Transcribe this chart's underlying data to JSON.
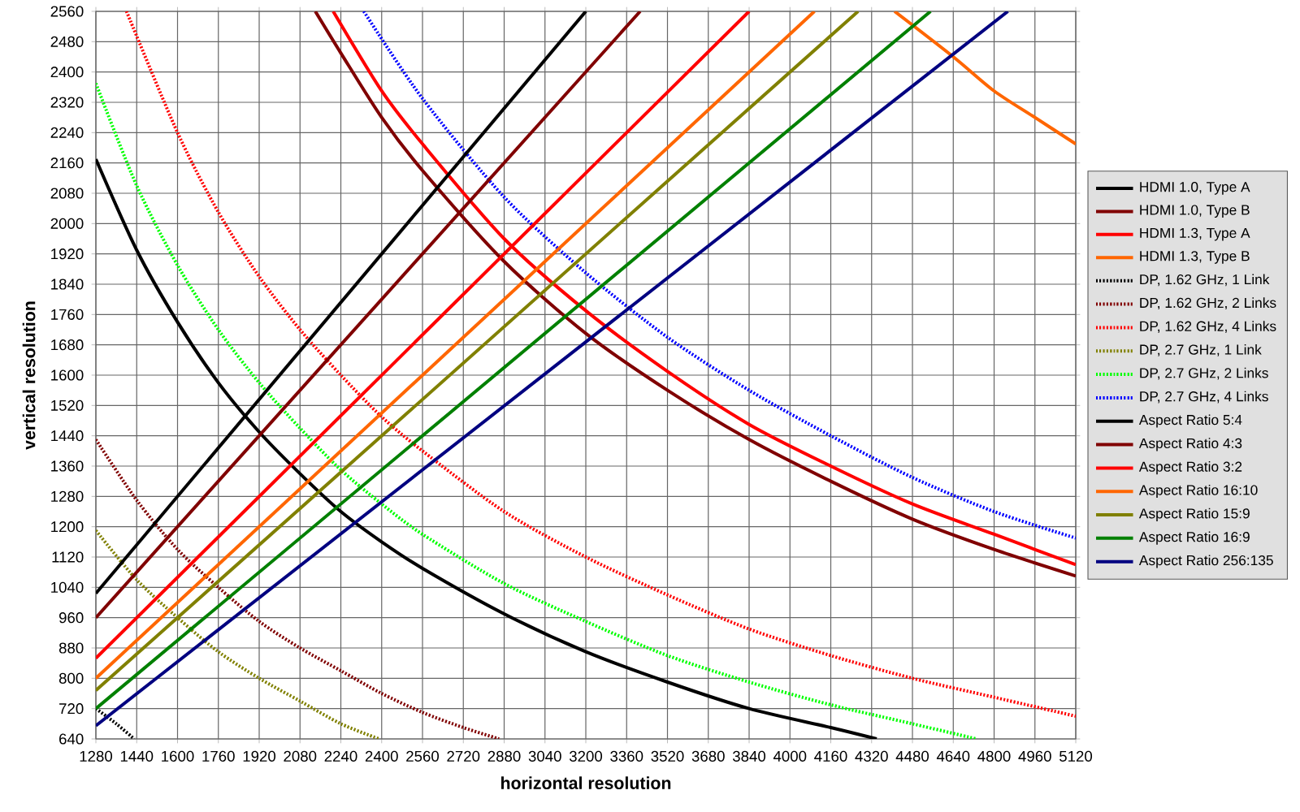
{
  "chart_data": {
    "type": "line",
    "xlabel": "horizontal resolution",
    "ylabel": "vertical resolution",
    "xlim": [
      1280,
      5120
    ],
    "ylim": [
      640,
      2560
    ],
    "xticks": [
      1280,
      1440,
      1600,
      1760,
      1920,
      2080,
      2240,
      2400,
      2560,
      2720,
      2880,
      3040,
      3200,
      3360,
      3520,
      3680,
      3840,
      4000,
      4160,
      4320,
      4480,
      4640,
      4800,
      4960,
      5120
    ],
    "yticks": [
      640,
      720,
      800,
      880,
      960,
      1040,
      1120,
      1200,
      1280,
      1360,
      1440,
      1520,
      1600,
      1680,
      1760,
      1840,
      1920,
      2000,
      2080,
      2160,
      2240,
      2320,
      2400,
      2480,
      2560
    ],
    "grid": true,
    "legend": "right",
    "line_style": "solid",
    "series": [
      {
        "name": "HDMI 1.0, Type A",
        "color": "#000000",
        "x": [
          1280,
          1440,
          1600,
          1760,
          1920,
          2080,
          2240,
          2400,
          2560,
          2880,
          3200,
          3520,
          3840,
          4160,
          4340
        ],
        "values": [
          2170,
          1930,
          1740,
          1580,
          1450,
          1340,
          1240,
          1160,
          1090,
          970,
          870,
          790,
          720,
          670,
          640
        ]
      },
      {
        "name": "HDMI 1.0, Type B",
        "color": "#800000",
        "x": [
          2140,
          2240,
          2400,
          2560,
          2880,
          3200,
          3520,
          3840,
          4160,
          4480,
          4800,
          5120
        ],
        "values": [
          2560,
          2450,
          2280,
          2140,
          1900,
          1710,
          1560,
          1430,
          1320,
          1220,
          1140,
          1070
        ]
      },
      {
        "name": "HDMI 1.3, Type A",
        "color": "#ff0000",
        "x": [
          2210,
          2400,
          2560,
          2880,
          3200,
          3520,
          3840,
          4160,
          4480,
          4800,
          5120
        ],
        "values": [
          2560,
          2350,
          2210,
          1960,
          1770,
          1610,
          1470,
          1360,
          1260,
          1180,
          1100
        ]
      },
      {
        "name": "HDMI 1.3, Type B",
        "color": "#ff6600",
        "x": [
          4410,
          4640,
          4800,
          4960,
          5120
        ],
        "values": [
          2560,
          2440,
          2350,
          2280,
          2210
        ]
      },
      {
        "name": "DP, 1.62 GHz, 1 Link",
        "color": "#000000",
        "line_style": "dotted",
        "x": [
          1280,
          1360,
          1430
        ],
        "values": [
          720,
          680,
          640
        ]
      },
      {
        "name": "DP, 1.62 GHz, 2 Links",
        "color": "#800000",
        "line_style": "dotted",
        "x": [
          1280,
          1440,
          1600,
          1760,
          1920,
          2080,
          2240,
          2400,
          2560,
          2720,
          2860
        ],
        "values": [
          1430,
          1270,
          1140,
          1040,
          950,
          880,
          820,
          760,
          710,
          670,
          640
        ]
      },
      {
        "name": "DP, 1.62 GHz, 4 Links",
        "color": "#ff0000",
        "line_style": "dotted",
        "x": [
          1400,
          1600,
          1760,
          1920,
          2080,
          2240,
          2400,
          2560,
          2880,
          3200,
          3520,
          3840,
          4160,
          4480,
          4800,
          5120
        ],
        "values": [
          2560,
          2240,
          2030,
          1860,
          1720,
          1600,
          1490,
          1400,
          1240,
          1120,
          1020,
          930,
          860,
          800,
          750,
          700
        ]
      },
      {
        "name": "DP, 2.7 GHz, 1 Link",
        "color": "#808000",
        "line_style": "dotted",
        "x": [
          1280,
          1440,
          1600,
          1760,
          1920,
          2080,
          2240,
          2390
        ],
        "values": [
          1190,
          1060,
          960,
          870,
          800,
          740,
          680,
          640
        ]
      },
      {
        "name": "DP, 2.7 GHz, 2 Links",
        "color": "#00ff00",
        "line_style": "dotted",
        "x": [
          1280,
          1440,
          1600,
          1760,
          1920,
          2080,
          2240,
          2400,
          2560,
          2880,
          3200,
          3520,
          3840,
          4160,
          4480,
          4730
        ],
        "values": [
          2370,
          2100,
          1890,
          1720,
          1580,
          1460,
          1350,
          1260,
          1180,
          1050,
          950,
          860,
          790,
          730,
          680,
          640
        ]
      },
      {
        "name": "DP, 2.7 GHz, 4 Links",
        "color": "#0000ff",
        "line_style": "dotted",
        "x": [
          2330,
          2560,
          2880,
          3200,
          3520,
          3840,
          4160,
          4480,
          4800,
          5120
        ],
        "values": [
          2560,
          2330,
          2070,
          1870,
          1700,
          1560,
          1440,
          1330,
          1240,
          1170
        ]
      },
      {
        "name": "Aspect Ratio 5:4",
        "color": "#000000",
        "x": [
          1280,
          3200
        ],
        "values": [
          1024,
          2560
        ]
      },
      {
        "name": "Aspect Ratio 4:3",
        "color": "#800000",
        "x": [
          1280,
          3413
        ],
        "values": [
          960,
          2560
        ]
      },
      {
        "name": "Aspect Ratio 3:2",
        "color": "#ff0000",
        "x": [
          1280,
          3840
        ],
        "values": [
          853,
          2560
        ]
      },
      {
        "name": "Aspect Ratio 16:10",
        "color": "#ff6600",
        "x": [
          1280,
          4096
        ],
        "values": [
          800,
          2560
        ]
      },
      {
        "name": "Aspect Ratio 15:9",
        "color": "#808000",
        "x": [
          1280,
          4267
        ],
        "values": [
          768,
          2560
        ]
      },
      {
        "name": "Aspect Ratio 16:9",
        "color": "#008000",
        "x": [
          1280,
          4551
        ],
        "values": [
          720,
          2560
        ]
      },
      {
        "name": "Aspect Ratio 256:135",
        "color": "#000080",
        "x": [
          1280,
          4854
        ],
        "values": [
          675,
          2560
        ]
      }
    ]
  }
}
